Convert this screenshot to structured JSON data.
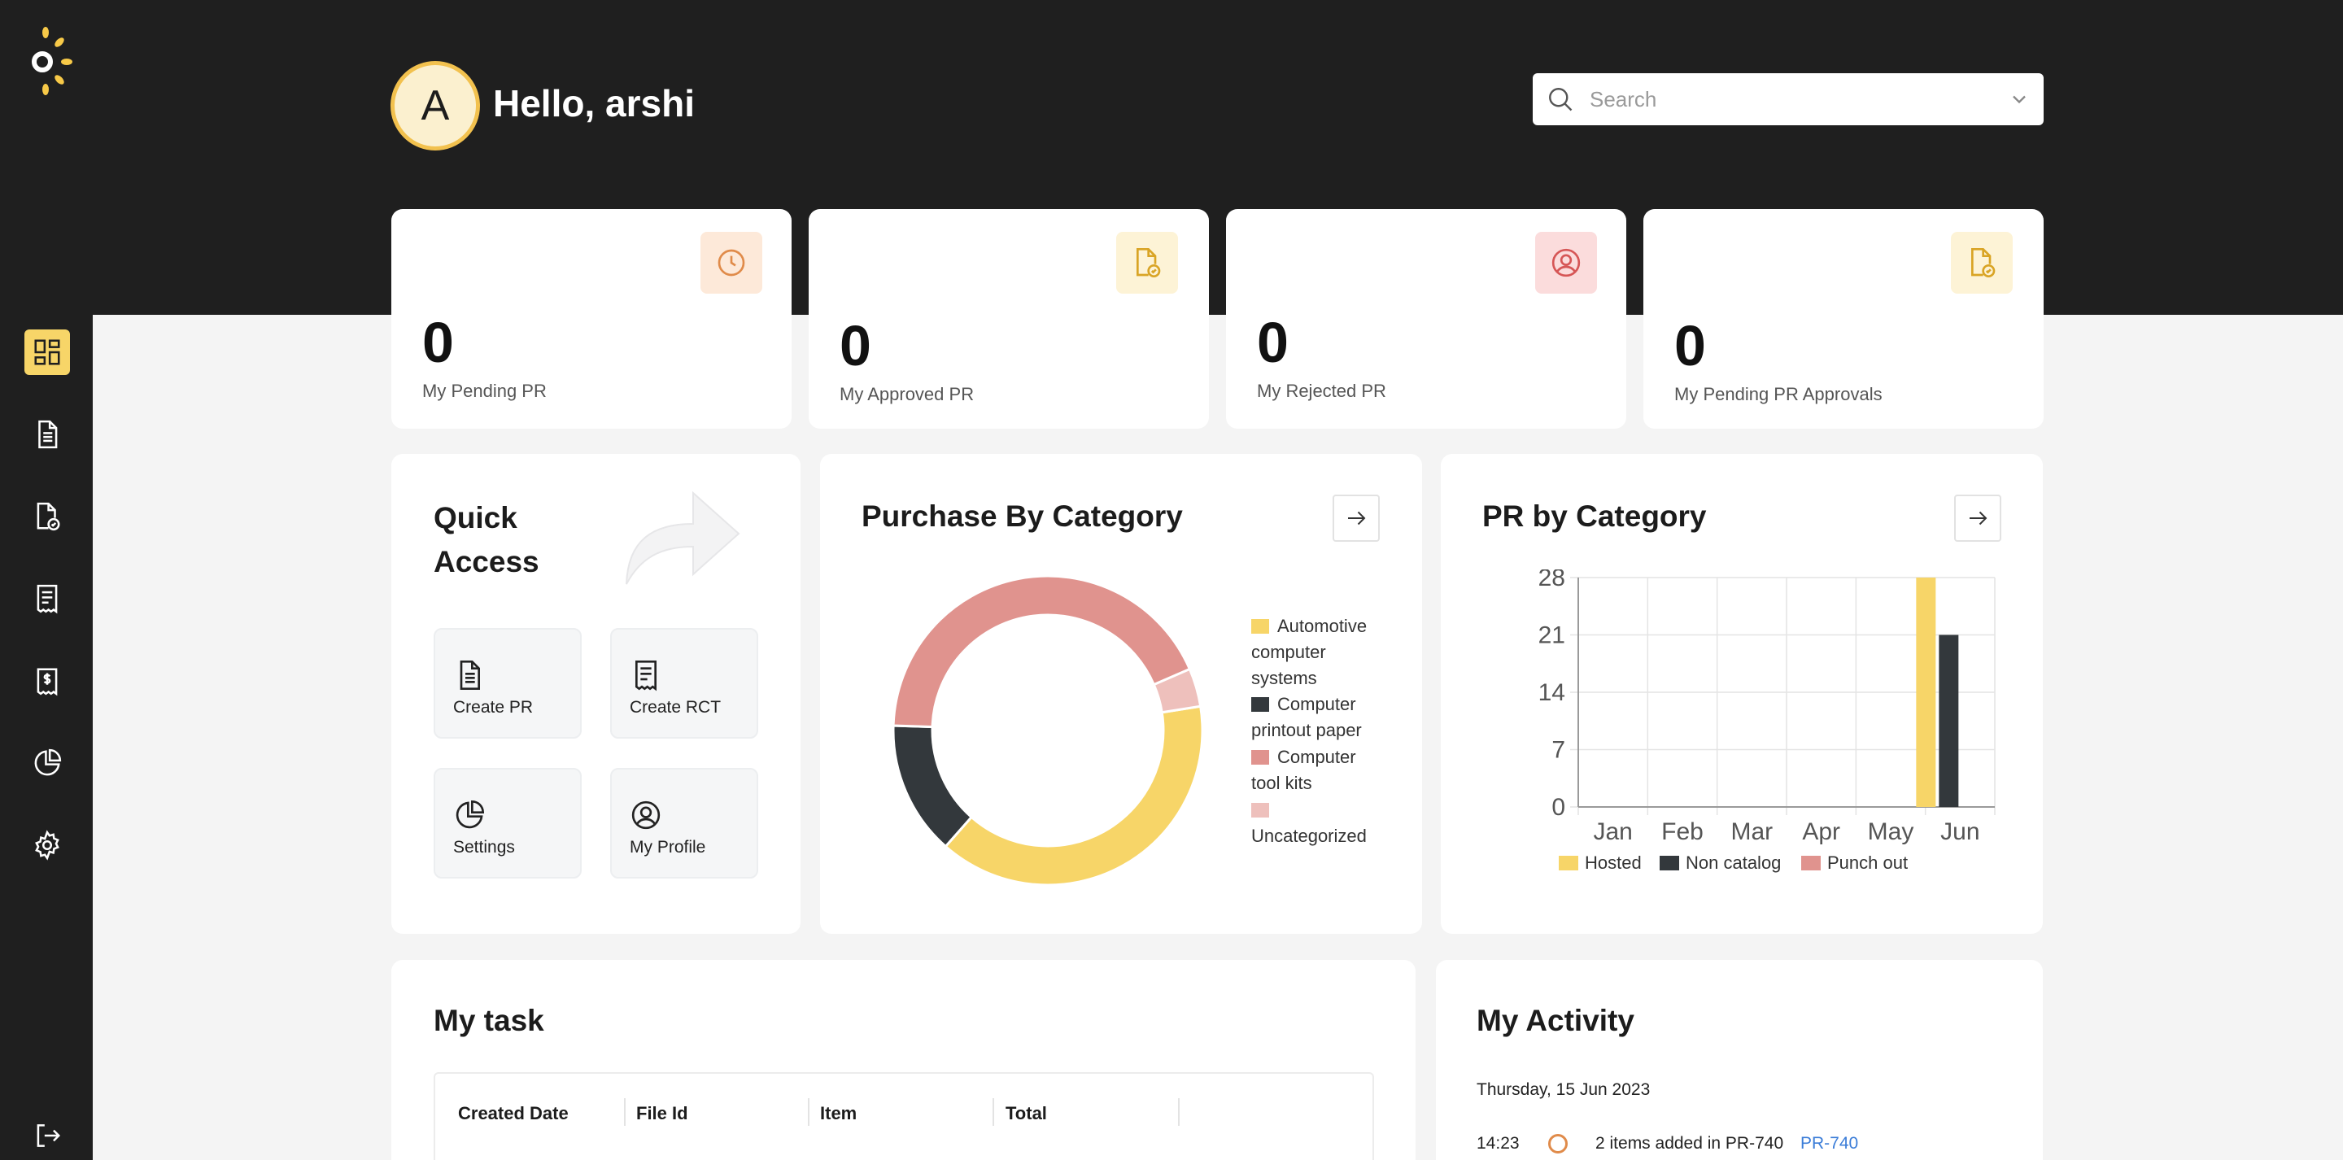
{
  "user": {
    "avatar_initial": "A",
    "greeting": "Hello, arshi"
  },
  "search": {
    "placeholder": "Search"
  },
  "sidebar": {
    "items": [
      {
        "name": "dashboard",
        "icon": "dashboard-icon",
        "active": true
      },
      {
        "name": "documents",
        "icon": "document-icon",
        "active": false
      },
      {
        "name": "approvals",
        "icon": "document-check-icon",
        "active": false
      },
      {
        "name": "receipts",
        "icon": "receipt-icon",
        "active": false
      },
      {
        "name": "invoices",
        "icon": "invoice-dollar-icon",
        "active": false
      },
      {
        "name": "reports",
        "icon": "pie-chart-icon",
        "active": false
      },
      {
        "name": "settings",
        "icon": "gear-icon",
        "active": false
      }
    ],
    "logout_icon": "logout-icon"
  },
  "stats": [
    {
      "value": "0",
      "label": "My Pending PR",
      "icon": "clock-icon",
      "icon_bg": "#fde9d9",
      "icon_color": "#e08b4a"
    },
    {
      "value": "0",
      "label": "My Approved PR",
      "icon": "document-check-icon",
      "icon_bg": "#fdf3d6",
      "icon_color": "#d9a425"
    },
    {
      "value": "0",
      "label": "My Rejected PR",
      "icon": "user-circle-icon",
      "icon_bg": "#fbdcdc",
      "icon_color": "#d65656"
    },
    {
      "value": "0",
      "label": "My Pending PR Approvals",
      "icon": "document-check-icon",
      "icon_bg": "#fdf3d6",
      "icon_color": "#d9a425"
    }
  ],
  "quick_access": {
    "title_line1": "Quick",
    "title_line2": "Access",
    "tiles": [
      {
        "label": "Create PR",
        "icon": "document-icon"
      },
      {
        "label": "Create RCT",
        "icon": "receipt-icon"
      },
      {
        "label": "Settings",
        "icon": "pie-chart-icon"
      },
      {
        "label": "My Profile",
        "icon": "user-circle-icon"
      }
    ]
  },
  "purchase_by_category": {
    "title": "Purchase By Category",
    "legend": [
      {
        "label": "Automotive computer systems",
        "color": "#f7d568"
      },
      {
        "label": "Computer printout paper",
        "color": "#33383c"
      },
      {
        "label": "Computer tool kits",
        "color": "#e0938e"
      },
      {
        "label": "Uncategorized",
        "color": "#eec0bc"
      }
    ]
  },
  "pr_by_category": {
    "title": "PR by Category",
    "legend": [
      {
        "label": "Hosted",
        "color": "#f7d568"
      },
      {
        "label": "Non catalog",
        "color": "#33383c"
      },
      {
        "label": "Punch out",
        "color": "#e0938e"
      }
    ]
  },
  "chart_data": [
    {
      "type": "pie",
      "title": "Purchase By Category",
      "categories": [
        "Automotive computer systems",
        "Computer printout paper",
        "Computer tool kits",
        "Uncategorized"
      ],
      "values": [
        39,
        14,
        43,
        4
      ],
      "colors": [
        "#f7d568",
        "#33383c",
        "#e0938e",
        "#eec0bc"
      ],
      "legend": "right"
    },
    {
      "type": "bar",
      "title": "PR by Category",
      "categories": [
        "Jan",
        "Feb",
        "Mar",
        "Apr",
        "May",
        "Jun"
      ],
      "series": [
        {
          "name": "Hosted",
          "color": "#f7d568",
          "values": [
            0,
            0,
            0,
            0,
            0,
            28
          ]
        },
        {
          "name": "Non catalog",
          "color": "#33383c",
          "values": [
            0,
            0,
            0,
            0,
            0,
            21
          ]
        },
        {
          "name": "Punch out",
          "color": "#e0938e",
          "values": [
            0,
            0,
            0,
            0,
            0,
            0
          ]
        }
      ],
      "yticks": [
        "0",
        "7",
        "14",
        "21",
        "28"
      ],
      "ylim": [
        0,
        28
      ],
      "grid": true,
      "legend": "bottom"
    }
  ],
  "my_task": {
    "title": "My task",
    "columns": [
      "Created Date",
      "File Id",
      "Item",
      "Total"
    ]
  },
  "my_activity": {
    "title": "My Activity",
    "date": "Thursday, 15 Jun 2023",
    "entries": [
      {
        "time": "14:23",
        "text": "2 items added in PR-740",
        "link": "PR-740"
      }
    ]
  }
}
